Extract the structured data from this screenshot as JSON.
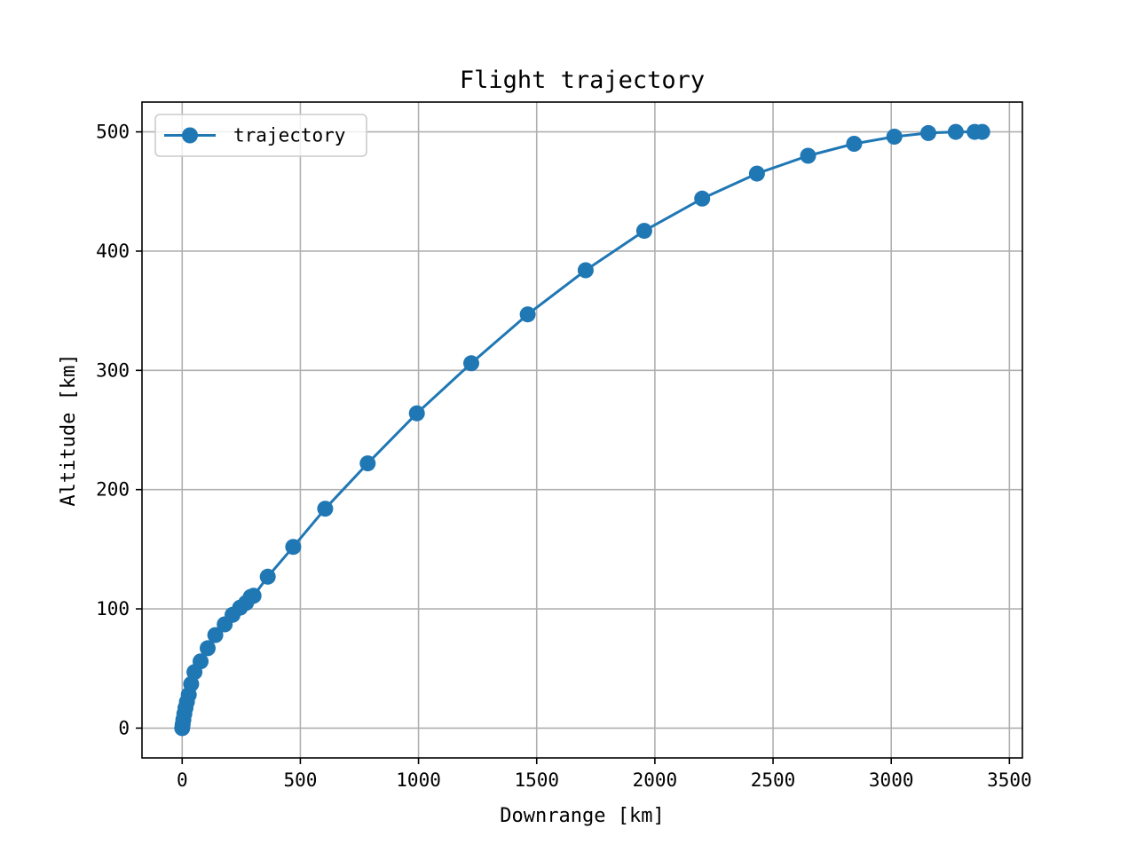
{
  "chart_data": {
    "type": "line",
    "title": "Flight trajectory",
    "xlabel": "Downrange [km]",
    "ylabel": "Altitude [km]",
    "xlim": [
      -170,
      3555
    ],
    "ylim": [
      -25,
      525
    ],
    "xticks": [
      0,
      500,
      1000,
      1500,
      2000,
      2500,
      3000,
      3500
    ],
    "yticks": [
      0,
      100,
      200,
      300,
      400,
      500
    ],
    "grid": true,
    "legend_position": "top-left",
    "series": [
      {
        "name": "trajectory",
        "color": "#1f77b4",
        "marker": "circle",
        "x": [
          0,
          2,
          5,
          9,
          14,
          20,
          28,
          38,
          52,
          78,
          108,
          140,
          180,
          213,
          245,
          270,
          290,
          302,
          362,
          470,
          605,
          785,
          993,
          1223,
          1462,
          1707,
          1955,
          2200,
          2432,
          2648,
          2843,
          3013,
          3157,
          3273,
          3353,
          3385
        ],
        "y": [
          0,
          3,
          7,
          12,
          17,
          22,
          28,
          37,
          47,
          56,
          67,
          78,
          87,
          95,
          101,
          105,
          110,
          111,
          127,
          152,
          184,
          222,
          264,
          306,
          347,
          384,
          417,
          444,
          465,
          480,
          490,
          496,
          499,
          500,
          500,
          500
        ]
      }
    ]
  }
}
